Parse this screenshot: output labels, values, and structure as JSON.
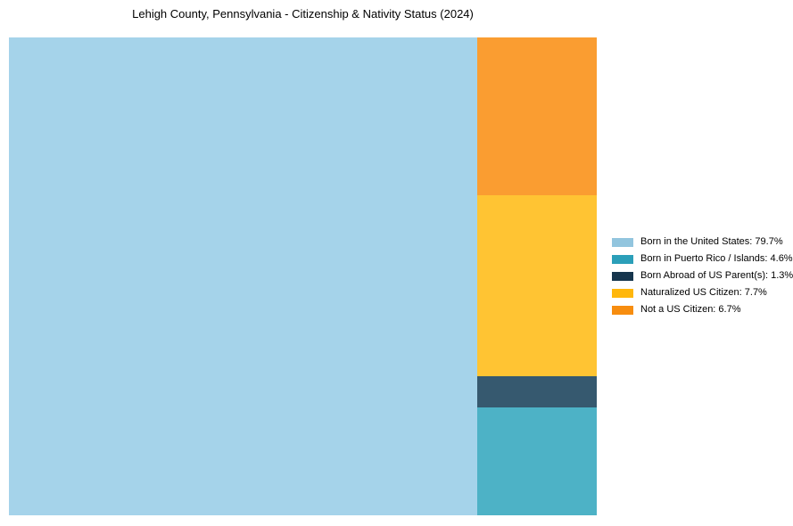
{
  "title": "Lehigh County, Pennsylvania - Citizenship & Nativity Status (2024)",
  "legend": {
    "items": [
      {
        "label": "Born in the United States: 79.7%",
        "swatch_color": "#92C5DE"
      },
      {
        "label": "Born in Puerto Rico / Islands: 4.6%",
        "swatch_color": "#2B9FB9"
      },
      {
        "label": "Born Abroad of US Parent(s): 1.3%",
        "swatch_color": "#16354D"
      },
      {
        "label": "Naturalized US Citizen: 7.7%",
        "swatch_color": "#FFB70C"
      },
      {
        "label": "Not a US Citizen: 6.7%",
        "swatch_color": "#F78D0F"
      }
    ]
  },
  "chart_data": {
    "type": "treemap",
    "title": "Lehigh County, Pennsylvania - Citizenship & Nativity Status (2024)",
    "categories": [
      "Born in the United States",
      "Born in Puerto Rico / Islands",
      "Born Abroad of US Parent(s)",
      "Naturalized US Citizen",
      "Not a US Citizen"
    ],
    "values": [
      79.7,
      4.6,
      1.3,
      7.7,
      6.7
    ],
    "unit": "%",
    "block_colors": [
      "#A5D3EA",
      "#4DB2C6",
      "#36596F",
      "#FFC433",
      "#FA9D31"
    ],
    "legend_colors": [
      "#92C5DE",
      "#2B9FB9",
      "#16354D",
      "#FFB70C",
      "#F78D0F"
    ],
    "layout": {
      "left_block_category_index": 0,
      "right_column_order_top_to_bottom": [
        4,
        3,
        2,
        1
      ],
      "legend_position": "center-right",
      "grid": false,
      "axes": false
    }
  }
}
